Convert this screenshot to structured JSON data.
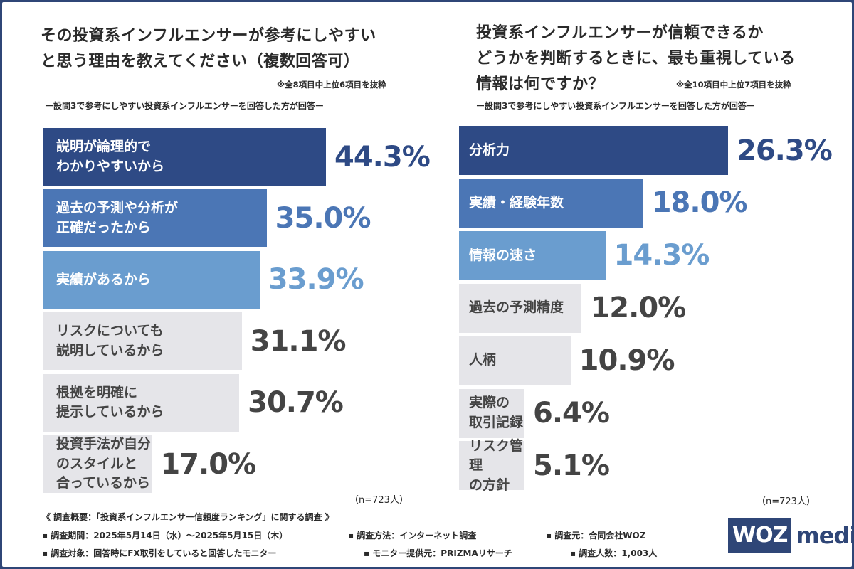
{
  "colors": {
    "frame": "#2f4677",
    "navy": "#2e4a85",
    "mid_blue": "#4b76b5",
    "light_blue": "#6a9dcf",
    "gray_bar": "#e5e5e9",
    "gray_text": "#444444"
  },
  "chart_data": [
    {
      "type": "bar",
      "orientation": "horizontal",
      "title": "その投資系インフルエンサーが参考にしやすいと思う理由を教えてください（複数回答可）",
      "title_lines": [
        "その投資系インフルエンサーが参考にしやすい",
        "と思う理由を教えてください（複数回答可）"
      ],
      "note": "※全8項目中上位6項目を抜粋",
      "subtitle": "ー設問3で参考にしやすい投資系インフルエンサーを回答した方が回答ー",
      "categories": [
        "説明が論理的で\nわかりやすいから",
        "過去の予測や分析が\n正確だったから",
        "実績があるから",
        "リスクについても\n説明しているから",
        "根拠を明確に\n提示しているから",
        "投資手法が自分のスタイルと\n合っているから"
      ],
      "values": [
        44.3,
        35.0,
        33.9,
        31.1,
        30.7,
        17.0
      ],
      "value_labels": [
        "44.3%",
        "35.0%",
        "33.9%",
        "31.1%",
        "30.7%",
        "17.0%"
      ],
      "unit": "%",
      "n_note": "（n=723人）"
    },
    {
      "type": "bar",
      "orientation": "horizontal",
      "title": "投資系インフルエンサーが信頼できるかどうかを判断するときに、最も重視している情報は何ですか？",
      "title_lines": [
        "投資系インフルエンサーが信頼できるか",
        "どうかを判断するときに、最も重視している",
        "情報は何ですか？"
      ],
      "note": "※全10項目中上位7項目を抜粋",
      "subtitle": "ー設問3で参考にしやすい投資系インフルエンサーを回答した方が回答ー",
      "categories": [
        "分析力",
        "実績・経験年数",
        "情報の速さ",
        "過去の予測精度",
        "人柄",
        "実際の\n取引記録",
        "リスク管理\nの方針"
      ],
      "values": [
        26.3,
        18.0,
        14.3,
        12.0,
        10.9,
        6.4,
        5.1
      ],
      "value_labels": [
        "26.3%",
        "18.0%",
        "14.3%",
        "12.0%",
        "10.9%",
        "6.4%",
        "5.1%"
      ],
      "unit": "%",
      "n_note": "（n=723人）"
    }
  ],
  "footer": {
    "heading": "《 調査概要：「投資系インフルエンサー信頼度ランキング」に関する調査 》",
    "period": "▪ 調査期間：2025年5月14日（水）〜2025年5月15日（木）",
    "method": "▪ 調査方法：インターネット調査",
    "org": "▪ 調査元：合同会社WOZ",
    "target": "▪ 調査対象：回答時にFX取引をしていると回答したモニター",
    "provider": "▪ モニター提供元：PRIZMAリサーチ",
    "count": "▪ 調査人数：1,003人"
  },
  "logo": {
    "box": "WOZ",
    "text": "media"
  }
}
